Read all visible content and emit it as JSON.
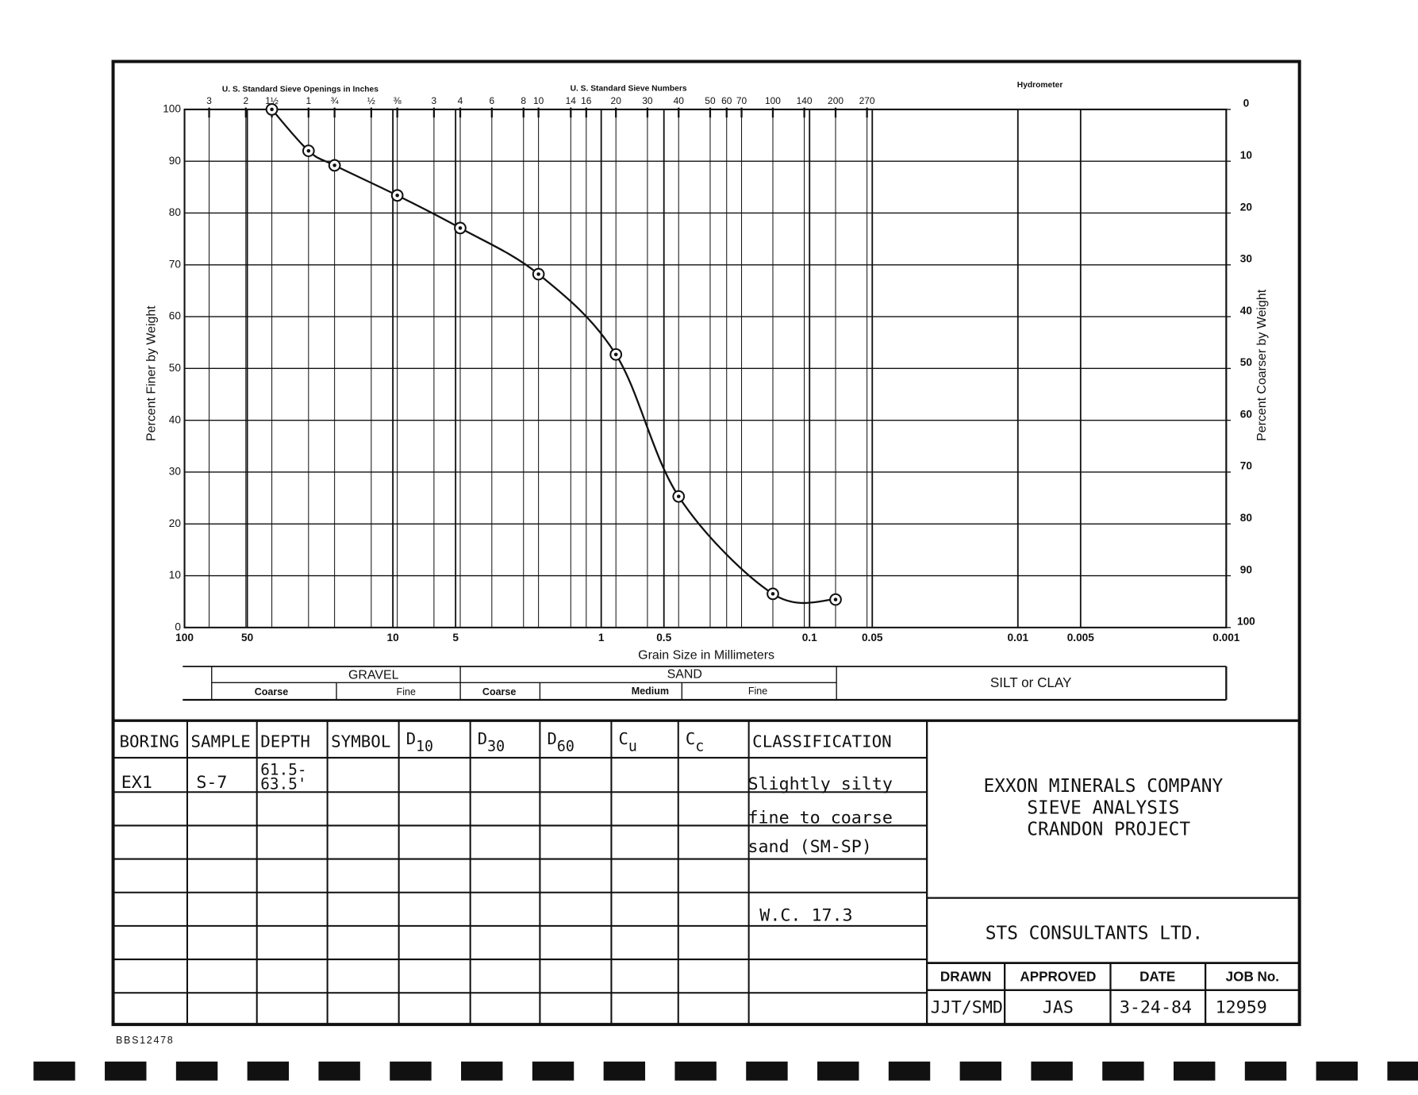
{
  "chart_data": {
    "type": "line",
    "x2_label_inches": "U. S. Standard Sieve Openings in Inches",
    "x2_label_numbers": "U. S. Standard Sieve Numbers",
    "hydrometer_label": "Hydrometer",
    "xlabel": "Grain Size in Millimeters",
    "ylabel": "Percent Finer by Weight",
    "y2label": "Percent Coarser by Weight",
    "x": [
      38.1,
      25.4,
      19.05,
      9.525,
      4.75,
      2.0,
      0.85,
      0.425,
      0.15,
      0.075
    ],
    "values": [
      100,
      92,
      89.2,
      83.4,
      77.1,
      68.2,
      52.7,
      25.3,
      6.5,
      5.4
    ],
    "color": "#111111",
    "xscale": "log",
    "xlim": [
      100,
      0.001
    ],
    "xticks": [
      100,
      50,
      10,
      5,
      1,
      0.5,
      0.1,
      0.05,
      0.01,
      0.005,
      0.001
    ],
    "x2ticks": [
      {
        "value": 76.2,
        "label": "3"
      },
      {
        "value": 50.8,
        "label": "2"
      },
      {
        "value": 38.1,
        "label": "1½"
      },
      {
        "value": 25.4,
        "label": "1"
      },
      {
        "value": 19.05,
        "label": "¾"
      },
      {
        "value": 12.7,
        "label": "½"
      },
      {
        "value": 9.525,
        "label": "⅜"
      },
      {
        "value": 6.35,
        "label": "3"
      },
      {
        "value": 4.75,
        "label": "4"
      },
      {
        "value": 3.35,
        "label": "6"
      },
      {
        "value": 2.36,
        "label": "8"
      },
      {
        "value": 2.0,
        "label": "10"
      },
      {
        "value": 1.4,
        "label": "14"
      },
      {
        "value": 1.18,
        "label": "16"
      },
      {
        "value": 0.85,
        "label": "20"
      },
      {
        "value": 0.6,
        "label": "30"
      },
      {
        "value": 0.425,
        "label": "40"
      },
      {
        "value": 0.3,
        "label": "50"
      },
      {
        "value": 0.25,
        "label": "60"
      },
      {
        "value": 0.212,
        "label": "70"
      },
      {
        "value": 0.15,
        "label": "100"
      },
      {
        "value": 0.106,
        "label": "140"
      },
      {
        "value": 0.075,
        "label": "200"
      },
      {
        "value": 0.053,
        "label": "270"
      }
    ],
    "ylim": [
      0,
      100
    ],
    "yticks": [
      0,
      10,
      20,
      30,
      40,
      50,
      60,
      70,
      80,
      90,
      100
    ],
    "y2lim": [
      100,
      0
    ],
    "y2ticks": [
      0,
      10,
      20,
      30,
      40,
      50,
      60,
      70,
      80,
      90,
      100
    ],
    "grid": true,
    "soil_classes": {
      "gravel": "GRAVEL",
      "sand": "SAND",
      "silt_clay": "SILT or CLAY",
      "gravel_coarse": "Coarse",
      "gravel_fine": "Fine",
      "sand_coarse": "Coarse",
      "sand_medium": "Medium",
      "sand_fine": "Fine"
    }
  },
  "table": {
    "headers": [
      "BORING",
      "SAMPLE",
      "DEPTH",
      "SYMBOL",
      {
        "text": "D",
        "sub": "10"
      },
      {
        "text": "D",
        "sub": "30"
      },
      {
        "text": "D",
        "sub": "60"
      },
      {
        "text": "C",
        "sub": "u"
      },
      {
        "text": "C",
        "sub": "c"
      },
      "CLASSIFICATION"
    ],
    "rows": [
      {
        "boring": "EX1",
        "sample": "S-7",
        "depth": [
          "61.5-",
          "63.5'"
        ],
        "classification": [
          "Slightly silty",
          "fine to coarse",
          "sand (SM-SP)"
        ],
        "water_content": "W.C. 17.3"
      }
    ]
  },
  "title_block": {
    "company": "EXXON MINERALS COMPANY",
    "report": "SIEVE ANALYSIS",
    "project": "CRANDON PROJECT",
    "consultant": "STS CONSULTANTS LTD.",
    "headers": [
      "DRAWN",
      "APPROVED",
      "DATE",
      "JOB No."
    ],
    "values": [
      "JJT/SMD",
      "JAS",
      "3-24-84",
      "12959"
    ]
  },
  "footer": {
    "code": "BBS12478"
  }
}
